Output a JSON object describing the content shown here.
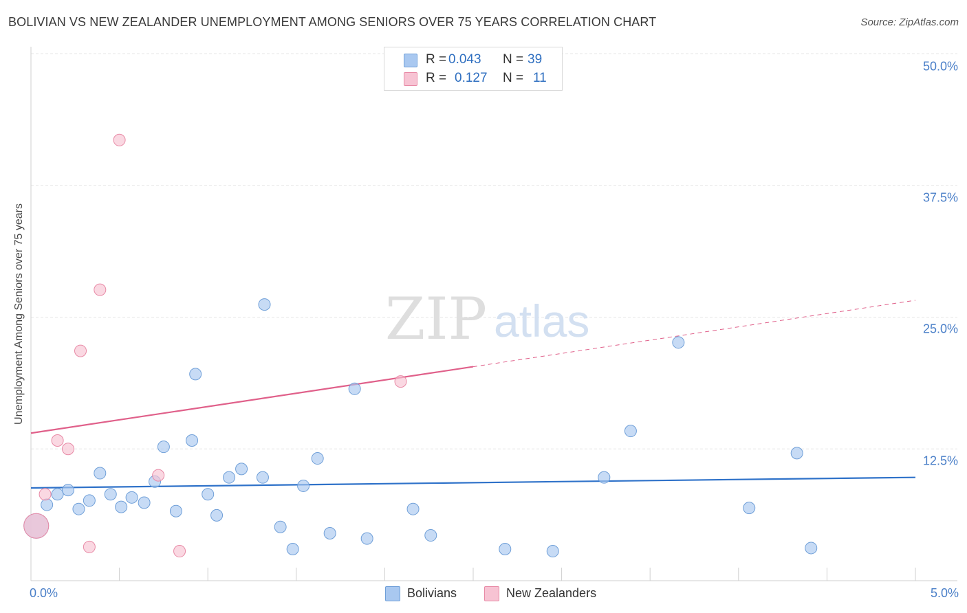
{
  "chart_data": {
    "type": "scatter",
    "title": "BOLIVIAN VS NEW ZEALANDER UNEMPLOYMENT AMONG SENIORS OVER 75 YEARS CORRELATION CHART",
    "source": "Source: ZipAtlas.com",
    "xlabel": "",
    "ylabel": "Unemployment Among Seniors over 75 years",
    "xlim": [
      0,
      5
    ],
    "ylim": [
      0,
      50
    ],
    "x_tick_labels": [
      "0.0%",
      "5.0%"
    ],
    "y_ticks": [
      12.5,
      25.0,
      37.5,
      50.0
    ],
    "y_tick_labels": [
      "12.5%",
      "25.0%",
      "37.5%",
      "50.0%"
    ],
    "watermark": "ZIPatlas",
    "legend": {
      "rows": [
        {
          "r_label": "R =",
          "r_value": "0.043",
          "n_label": "N =",
          "n_value": "39"
        },
        {
          "r_label": "R =",
          "r_value": "0.127",
          "n_label": "N =",
          "n_value": "11"
        }
      ]
    },
    "series": [
      {
        "name": "Bolivians",
        "color": "#a9c8f0",
        "stroke": "#6f9fd8",
        "line_color": "#2f72c9",
        "trend": {
          "x": [
            0,
            5
          ],
          "y": [
            8.8,
            9.8
          ]
        },
        "points": [
          {
            "x": 0.03,
            "y": 5.2,
            "big": true
          },
          {
            "x": 0.09,
            "y": 7.2
          },
          {
            "x": 0.15,
            "y": 8.2
          },
          {
            "x": 0.21,
            "y": 8.6
          },
          {
            "x": 0.27,
            "y": 6.8
          },
          {
            "x": 0.33,
            "y": 7.6
          },
          {
            "x": 0.39,
            "y": 10.2
          },
          {
            "x": 0.45,
            "y": 8.2
          },
          {
            "x": 0.51,
            "y": 7.0
          },
          {
            "x": 0.57,
            "y": 7.9
          },
          {
            "x": 0.64,
            "y": 7.4
          },
          {
            "x": 0.7,
            "y": 9.4
          },
          {
            "x": 0.75,
            "y": 12.7
          },
          {
            "x": 0.82,
            "y": 6.6
          },
          {
            "x": 0.93,
            "y": 19.6
          },
          {
            "x": 0.91,
            "y": 13.3
          },
          {
            "x": 1.0,
            "y": 8.2
          },
          {
            "x": 1.05,
            "y": 6.2
          },
          {
            "x": 1.12,
            "y": 9.8
          },
          {
            "x": 1.19,
            "y": 10.6
          },
          {
            "x": 1.31,
            "y": 9.8
          },
          {
            "x": 1.32,
            "y": 26.2
          },
          {
            "x": 1.41,
            "y": 5.1
          },
          {
            "x": 1.48,
            "y": 3.0
          },
          {
            "x": 1.54,
            "y": 9.0
          },
          {
            "x": 1.62,
            "y": 11.6
          },
          {
            "x": 1.69,
            "y": 4.5
          },
          {
            "x": 1.83,
            "y": 18.2
          },
          {
            "x": 1.9,
            "y": 4.0
          },
          {
            "x": 2.16,
            "y": 6.8
          },
          {
            "x": 2.26,
            "y": 4.3
          },
          {
            "x": 2.68,
            "y": 3.0
          },
          {
            "x": 2.95,
            "y": 2.8
          },
          {
            "x": 3.24,
            "y": 9.8
          },
          {
            "x": 3.39,
            "y": 14.2
          },
          {
            "x": 3.66,
            "y": 22.6
          },
          {
            "x": 4.06,
            "y": 6.9
          },
          {
            "x": 4.33,
            "y": 12.1
          },
          {
            "x": 4.41,
            "y": 3.1
          }
        ]
      },
      {
        "name": "New Zealanders",
        "color": "#f7c3d3",
        "stroke": "#e88aa6",
        "line_color": "#e0608a",
        "trend": {
          "x": [
            0,
            5
          ],
          "y": [
            14.0,
            26.6
          ]
        },
        "trend_solid_until": 2.5,
        "points": [
          {
            "x": 0.03,
            "y": 5.2,
            "big": true
          },
          {
            "x": 0.08,
            "y": 8.2
          },
          {
            "x": 0.15,
            "y": 13.3
          },
          {
            "x": 0.21,
            "y": 12.5
          },
          {
            "x": 0.28,
            "y": 21.8
          },
          {
            "x": 0.33,
            "y": 3.2
          },
          {
            "x": 0.39,
            "y": 27.6
          },
          {
            "x": 0.5,
            "y": 41.8
          },
          {
            "x": 0.72,
            "y": 10.0
          },
          {
            "x": 0.84,
            "y": 2.8
          },
          {
            "x": 2.09,
            "y": 18.9
          }
        ]
      }
    ]
  }
}
